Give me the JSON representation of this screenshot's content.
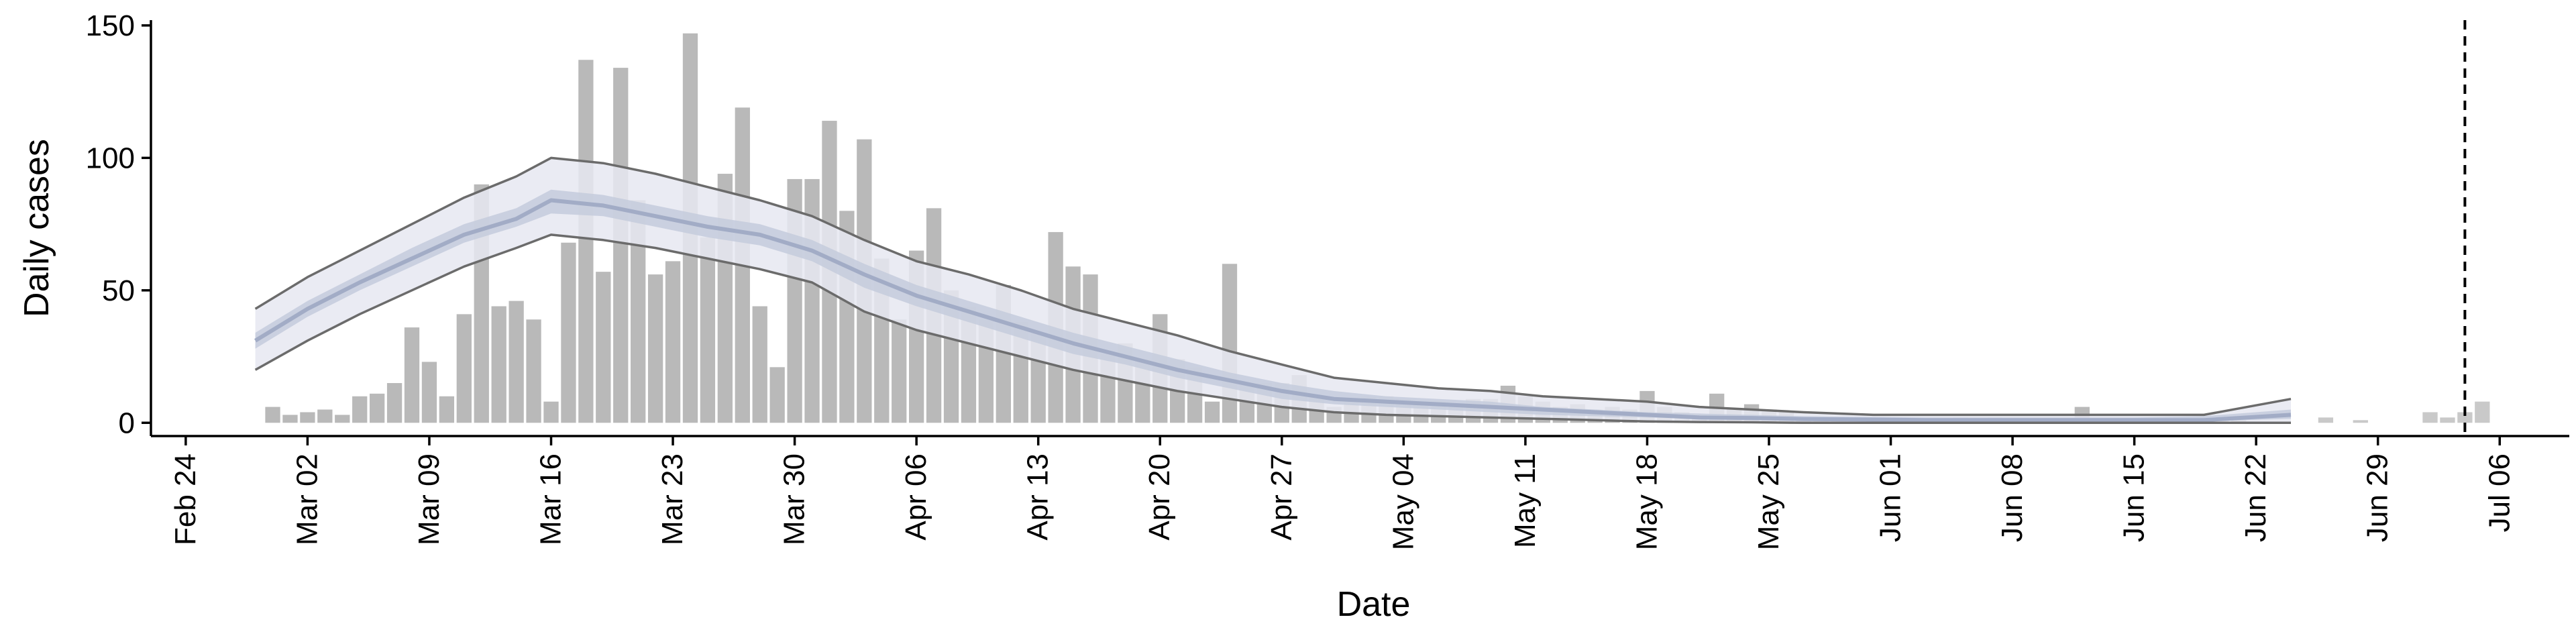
{
  "chart_data": {
    "type": "bar",
    "title": "",
    "xlabel": "Date",
    "ylabel": "Daily cases",
    "ylim": [
      -5,
      152
    ],
    "yticks": [
      0,
      50,
      100,
      150
    ],
    "xlim": [
      "2020-02-22",
      "2020-07-10"
    ],
    "xticks": [
      "2020-02-24",
      "2020-03-02",
      "2020-03-09",
      "2020-03-16",
      "2020-03-23",
      "2020-03-30",
      "2020-04-06",
      "2020-04-13",
      "2020-04-20",
      "2020-04-27",
      "2020-05-04",
      "2020-05-11",
      "2020-05-18",
      "2020-05-25",
      "2020-06-01",
      "2020-06-08",
      "2020-06-15",
      "2020-06-22",
      "2020-06-29",
      "2020-07-06"
    ],
    "xtick_labels": [
      "Feb 24",
      "Mar 02",
      "Mar 09",
      "Mar 16",
      "Mar 23",
      "Mar 30",
      "Apr 06",
      "Apr 13",
      "Apr 20",
      "Apr 27",
      "May 04",
      "May 11",
      "May 18",
      "May 25",
      "Jun 01",
      "Jun 08",
      "Jun 15",
      "Jun 22",
      "Jun 29",
      "Jul 06"
    ],
    "grid": false,
    "legend": "none",
    "cases_start": "2020-02-29",
    "cases": [
      6,
      3,
      4,
      5,
      3,
      10,
      11,
      15,
      36,
      23,
      10,
      41,
      90,
      44,
      46,
      39,
      8,
      68,
      137,
      57,
      134,
      84,
      56,
      61,
      147,
      70,
      94,
      119,
      44,
      21,
      92,
      92,
      114,
      80,
      107,
      62,
      39,
      65,
      81,
      50,
      44,
      39,
      52,
      38,
      34,
      72,
      59,
      56,
      26,
      30,
      24,
      41,
      24,
      21,
      8,
      60,
      15,
      15,
      15,
      18,
      10,
      6,
      9,
      10,
      10,
      9,
      8,
      8,
      6,
      9,
      9,
      14,
      10,
      8,
      6,
      7,
      5,
      6,
      5,
      12,
      6,
      4,
      3,
      11,
      5,
      7,
      5,
      4,
      2,
      2,
      2,
      1,
      2,
      1,
      1,
      1,
      1,
      2,
      1,
      2,
      1,
      1,
      1,
      1,
      6,
      1,
      1,
      1,
      1,
      1,
      1,
      1,
      1,
      1
    ],
    "gap_count": 17,
    "later_start": "2020-06-25",
    "later_cases": [
      0,
      2,
      0,
      1,
      0,
      0,
      0,
      4,
      2,
      4,
      8
    ],
    "later_color": "#c9c9c9",
    "estimate": {
      "dates": [
        "2020-02-28",
        "2020-03-02",
        "2020-03-05",
        "2020-03-08",
        "2020-03-11",
        "2020-03-14",
        "2020-03-16",
        "2020-03-19",
        "2020-03-22",
        "2020-03-25",
        "2020-03-28",
        "2020-03-31",
        "2020-04-03",
        "2020-04-06",
        "2020-04-09",
        "2020-04-12",
        "2020-04-15",
        "2020-04-18",
        "2020-04-21",
        "2020-04-24",
        "2020-04-27",
        "2020-04-30",
        "2020-05-03",
        "2020-05-06",
        "2020-05-09",
        "2020-05-12",
        "2020-05-15",
        "2020-05-18",
        "2020-05-21",
        "2020-05-24",
        "2020-05-27",
        "2020-05-31",
        "2020-06-03",
        "2020-06-07",
        "2020-06-11",
        "2020-06-15",
        "2020-06-19",
        "2020-06-24"
      ],
      "median": [
        31,
        43,
        53,
        62,
        71,
        77,
        84,
        82,
        78,
        74,
        71,
        65,
        56,
        48,
        42,
        36,
        30,
        25,
        20,
        16,
        12,
        9,
        8,
        7,
        6,
        5,
        4,
        3,
        2,
        1.8,
        1.4,
        1.2,
        1,
        1,
        1,
        1,
        1,
        3
      ],
      "inner_low": [
        28,
        40,
        50,
        59,
        68,
        74,
        79,
        78,
        74,
        70,
        67,
        61,
        51,
        44,
        38,
        32,
        26,
        22,
        17,
        13,
        9,
        7,
        6,
        5,
        4,
        3,
        2.5,
        2,
        1.5,
        1,
        0.8,
        0.6,
        0.5,
        0.5,
        0.5,
        0.5,
        0.6,
        1.5
      ],
      "inner_high": [
        34,
        46,
        56,
        66,
        75,
        81,
        88,
        86,
        82,
        78,
        75,
        69,
        60,
        52,
        46,
        40,
        34,
        29,
        24,
        19,
        15,
        12,
        10,
        9,
        8,
        6,
        5,
        4,
        3.5,
        3,
        2.5,
        2.2,
        2,
        2,
        2,
        2,
        2.5,
        5
      ],
      "outer_low": [
        20,
        31,
        41,
        50,
        59,
        66,
        71,
        69,
        66,
        62,
        58,
        53,
        42,
        35,
        30,
        25,
        20,
        16,
        12,
        9,
        6,
        4,
        3,
        2.5,
        2,
        1.5,
        1,
        0.5,
        0.3,
        0.2,
        0,
        0,
        0,
        0,
        0,
        0,
        0,
        0
      ],
      "outer_high": [
        43,
        55,
        65,
        75,
        85,
        93,
        100,
        98,
        94,
        89,
        84,
        78,
        69,
        61,
        56,
        50,
        43,
        38,
        33,
        27,
        22,
        17,
        15,
        13,
        12,
        10,
        9,
        8,
        6,
        5,
        4,
        3,
        3,
        3,
        3,
        3,
        3,
        9
      ]
    },
    "cutoff_date": "2020-07-04",
    "colors": {
      "bar": "#b9b9b9",
      "band_outer": "#e6e8f1",
      "band_inner": "#c4cbdc",
      "median": "#a2acc6",
      "outline": "#6b6b6b"
    }
  }
}
